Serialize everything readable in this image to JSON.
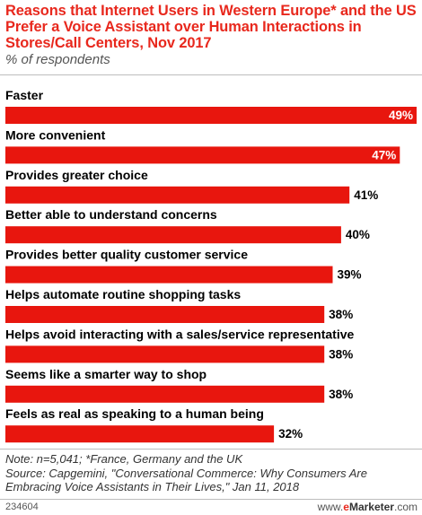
{
  "chart_data": {
    "type": "bar",
    "orientation": "horizontal",
    "title": "Reasons that Internet Users in Western Europe* and the US Prefer a Voice Assistant over Human Interactions in Stores/Call Centers, Nov 2017",
    "subtitle": "% of respondents",
    "categories": [
      "Faster",
      "More convenient",
      "Provides greater choice",
      "Better able to understand concerns",
      "Provides better quality customer service",
      "Helps automate routine shopping tasks",
      "Helps avoid interacting with a sales/service representative",
      "Seems like a smarter way to shop",
      "Feels as real as speaking to a human being"
    ],
    "values": [
      49,
      47,
      41,
      40,
      39,
      38,
      38,
      38,
      32
    ],
    "value_labels": [
      "49%",
      "47%",
      "41%",
      "40%",
      "39%",
      "38%",
      "38%",
      "38%",
      "32%"
    ],
    "xlim": [
      0,
      49
    ],
    "grid": false,
    "legend": "none"
  },
  "notes": [
    "Note: n=5,041; *France, Germany and the UK",
    "Source: Capgemini, \"Conversational Commerce: Why Consumers Are",
    "Embracing Voice Assistants in Their Lives,\" Jan 11, 2018"
  ],
  "footer": {
    "chart_id": "234604",
    "brand_prefix": "www.",
    "brand_e": "e",
    "brand_name": "Marketer",
    "brand_suffix": ".com"
  },
  "colors": {
    "title": "#e8281d",
    "bar": "#e8160e",
    "label_inside": "#ffffff",
    "label_outside": "#000000"
  }
}
